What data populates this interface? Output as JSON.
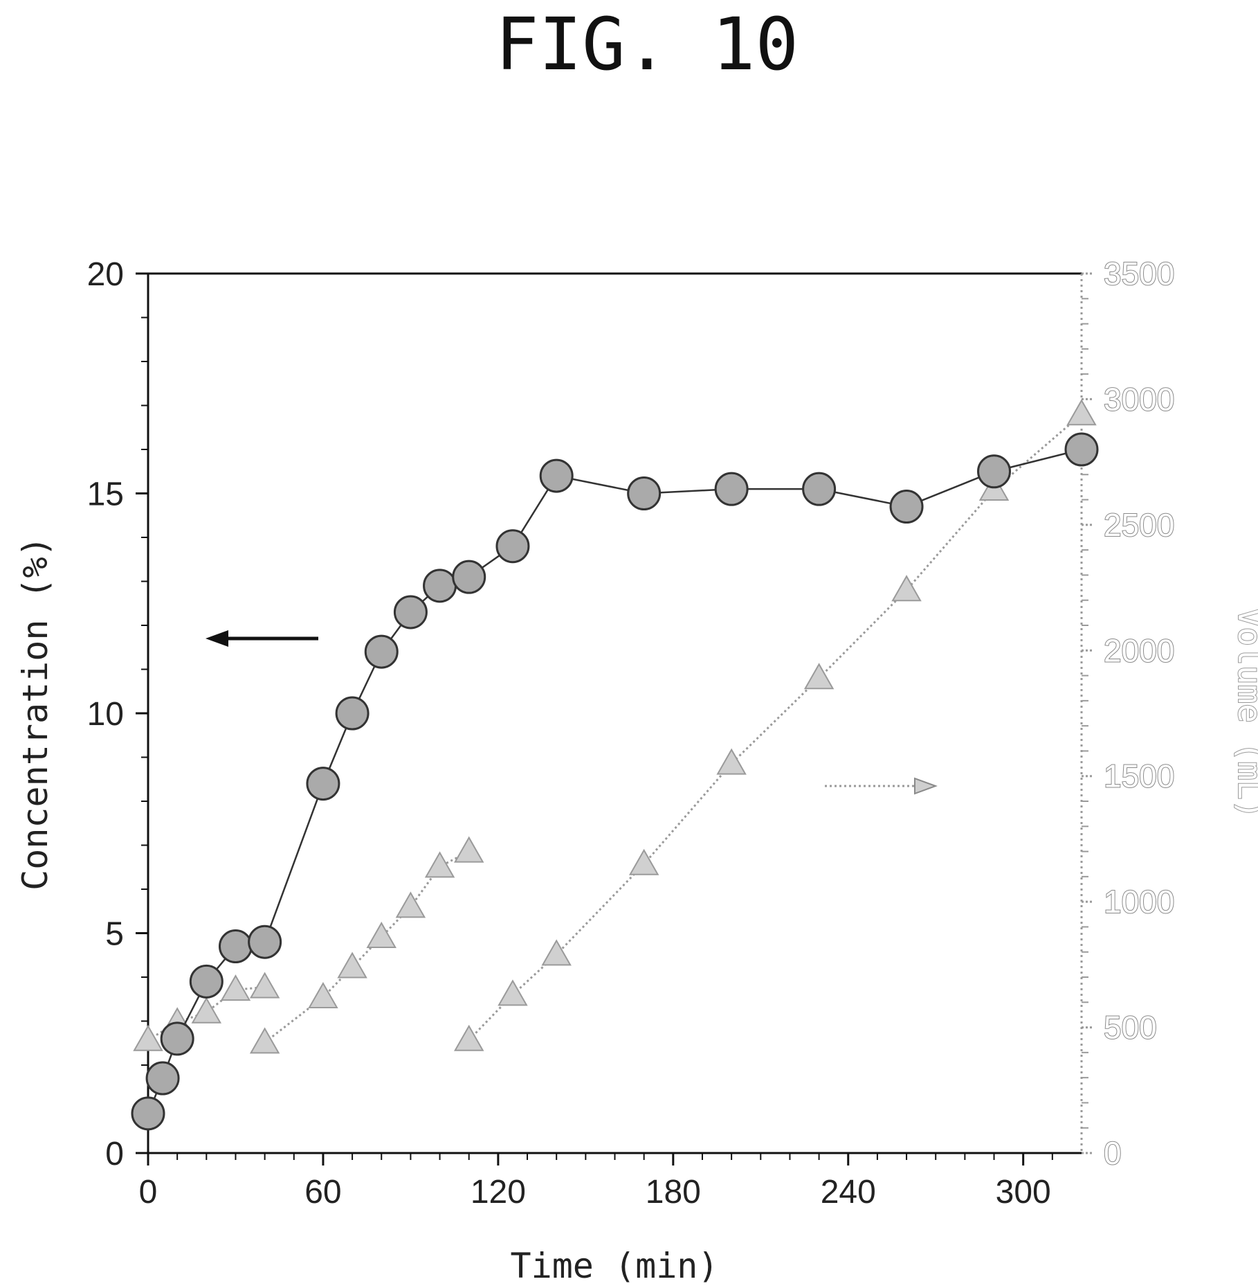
{
  "figure_label": "FIG. 10",
  "chart_data": {
    "type": "line",
    "x": {
      "label": "Time (min)",
      "range": [
        0,
        320
      ],
      "ticks": [
        0,
        60,
        120,
        180,
        240,
        300
      ],
      "tick_labels": [
        "0",
        "60",
        "120",
        "180",
        "240",
        "300"
      ]
    },
    "y_left": {
      "label": "Concentration (%)",
      "range": [
        0,
        20
      ],
      "ticks": [
        0,
        5,
        10,
        15,
        20
      ],
      "tick_labels": [
        "0",
        "5",
        "10",
        "15",
        "20"
      ]
    },
    "y_right": {
      "label": "Volume (mL)",
      "range": [
        0,
        3500
      ],
      "ticks": [
        0,
        500,
        1000,
        1500,
        2000,
        2500,
        3000,
        3500
      ],
      "tick_labels": [
        "0",
        "500",
        "1000",
        "1500",
        "2000",
        "2500",
        "3000",
        "3500"
      ]
    },
    "arrows": [
      {
        "points_to": "left",
        "axis": "left"
      },
      {
        "points_to": "right",
        "axis": "right"
      }
    ],
    "series": [
      {
        "axis": "left",
        "marker": "circle",
        "line": "solid",
        "color": "#555555",
        "fill": "#aaaaaa",
        "points": [
          {
            "x": 0,
            "y": 0.9
          },
          {
            "x": 5,
            "y": 1.7
          },
          {
            "x": 10,
            "y": 2.6
          },
          {
            "x": 20,
            "y": 3.9
          },
          {
            "x": 30,
            "y": 4.7
          },
          {
            "x": 40,
            "y": 4.8
          },
          {
            "x": 60,
            "y": 8.4
          },
          {
            "x": 70,
            "y": 10.0
          },
          {
            "x": 80,
            "y": 11.4
          },
          {
            "x": 90,
            "y": 12.3
          },
          {
            "x": 100,
            "y": 12.9
          },
          {
            "x": 110,
            "y": 13.1
          },
          {
            "x": 125,
            "y": 13.8
          },
          {
            "x": 140,
            "y": 15.4
          },
          {
            "x": 170,
            "y": 15.0
          },
          {
            "x": 200,
            "y": 15.1
          },
          {
            "x": 230,
            "y": 15.1
          },
          {
            "x": 260,
            "y": 14.7
          },
          {
            "x": 290,
            "y": 15.5
          },
          {
            "x": 320,
            "y": 16.0
          }
        ]
      },
      {
        "axis": "right",
        "marker": "triangle",
        "line": "dotted",
        "color": "#9a9a9a",
        "fill": "#d0d0d0",
        "segments": [
          [
            {
              "x": 0,
              "y": 450
            },
            {
              "x": 10,
              "y": 520
            },
            {
              "x": 20,
              "y": 560
            },
            {
              "x": 30,
              "y": 650
            },
            {
              "x": 40,
              "y": 660
            }
          ],
          [
            {
              "x": 40,
              "y": 440
            },
            {
              "x": 60,
              "y": 620
            },
            {
              "x": 70,
              "y": 740
            },
            {
              "x": 80,
              "y": 860
            },
            {
              "x": 90,
              "y": 980
            },
            {
              "x": 100,
              "y": 1140
            },
            {
              "x": 110,
              "y": 1200
            }
          ],
          [
            {
              "x": 110,
              "y": 450
            },
            {
              "x": 125,
              "y": 630
            },
            {
              "x": 140,
              "y": 790
            },
            {
              "x": 170,
              "y": 1150
            },
            {
              "x": 200,
              "y": 1550
            },
            {
              "x": 230,
              "y": 1890
            },
            {
              "x": 260,
              "y": 2240
            },
            {
              "x": 290,
              "y": 2640
            },
            {
              "x": 320,
              "y": 2940
            }
          ]
        ]
      }
    ]
  }
}
